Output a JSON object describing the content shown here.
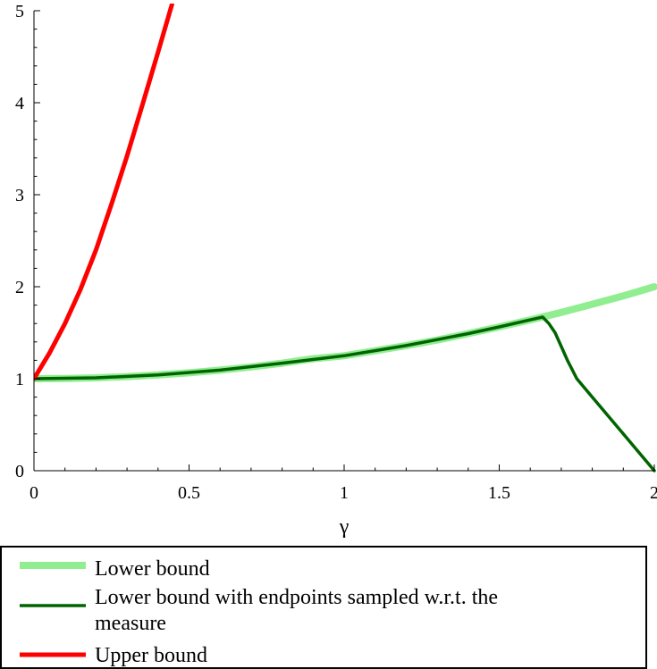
{
  "chart_data": {
    "type": "line",
    "title": "",
    "xlabel": "γ",
    "ylabel": "",
    "xlim": [
      0,
      2
    ],
    "ylim": [
      0,
      5
    ],
    "xticks": [
      "0",
      "0.5",
      "1",
      "1.5",
      "2"
    ],
    "yticks": [
      "0",
      "1",
      "2",
      "3",
      "4",
      "5"
    ],
    "grid": false,
    "legend_position": "bottom",
    "series": [
      {
        "name": "Lower bound",
        "color": "#90ee90",
        "x": [
          0,
          0.1,
          0.2,
          0.3,
          0.4,
          0.5,
          0.6,
          0.7,
          0.8,
          0.9,
          1.0,
          1.1,
          1.2,
          1.3,
          1.4,
          1.5,
          1.6,
          1.7,
          1.8,
          1.9,
          2.0
        ],
        "y": [
          1.0,
          1.003,
          1.01,
          1.023,
          1.041,
          1.064,
          1.093,
          1.128,
          1.169,
          1.217,
          1.25,
          1.304,
          1.36,
          1.42,
          1.49,
          1.563,
          1.64,
          1.72,
          1.81,
          1.9,
          2.0
        ]
      },
      {
        "name": "Lower bound with endpoints sampled w.r.t. the measure",
        "label_lines": [
          "Lower bound with endpoints sampled w.r.t. the",
          "measure"
        ],
        "color": "#006400",
        "x": [
          0,
          0.2,
          0.4,
          0.6,
          0.8,
          1.0,
          1.2,
          1.4,
          1.5,
          1.6,
          1.64,
          1.66,
          1.68,
          1.7,
          1.72,
          1.75,
          1.8,
          1.9,
          2.0
        ],
        "y": [
          1.0,
          1.01,
          1.041,
          1.093,
          1.169,
          1.25,
          1.36,
          1.49,
          1.563,
          1.64,
          1.67,
          1.6,
          1.5,
          1.35,
          1.2,
          1.0,
          0.8,
          0.4,
          0.0
        ]
      },
      {
        "name": "Upper bound",
        "color": "#ff0000",
        "x": [
          0,
          0.05,
          0.1,
          0.15,
          0.2,
          0.25,
          0.3,
          0.35,
          0.4,
          0.445
        ],
        "y": [
          1.0,
          1.28,
          1.6,
          1.97,
          2.4,
          2.9,
          3.42,
          3.98,
          4.55,
          5.07
        ]
      }
    ]
  }
}
